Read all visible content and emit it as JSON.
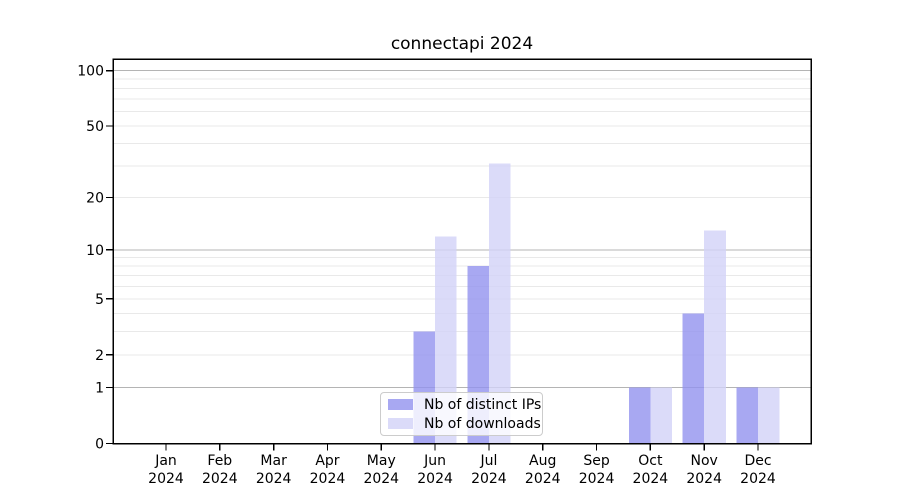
{
  "chart_data": {
    "type": "bar",
    "title": "connectapi 2024",
    "categories": [
      "Jan 2024",
      "Feb 2024",
      "Mar 2024",
      "Apr 2024",
      "May 2024",
      "Jun 2024",
      "Jul 2024",
      "Aug 2024",
      "Sep 2024",
      "Oct 2024",
      "Nov 2024",
      "Dec 2024"
    ],
    "series": [
      {
        "name": "Nb of distinct IPs",
        "color": "#9292ef",
        "values": [
          0,
          0,
          0,
          0,
          0,
          3,
          8,
          0,
          0,
          1,
          4,
          1
        ]
      },
      {
        "name": "Nb of downloads",
        "color": "#d2d2f8",
        "values": [
          0,
          0,
          0,
          0,
          0,
          12,
          31,
          0,
          0,
          1,
          13,
          1
        ]
      }
    ],
    "bar_opacity": 0.8,
    "scale": "log1p",
    "xlabel": "",
    "ylabel": "",
    "ylim": [
      0,
      117
    ],
    "y_ticks": [
      0,
      1,
      2,
      5,
      10,
      20,
      50,
      100
    ],
    "y_major_gridlines": [
      1,
      10,
      100
    ],
    "y_minor_gridlines": [
      2,
      3,
      4,
      5,
      6,
      7,
      8,
      9,
      20,
      30,
      40,
      50,
      60,
      70,
      80,
      90
    ],
    "grid": true,
    "legend_position": "lower center",
    "colors": {
      "major_grid": "#b4b4b4",
      "minor_grid": "#e9e9e9",
      "spine": "#000000",
      "tick_text": "#000000",
      "background": "#ffffff"
    }
  }
}
